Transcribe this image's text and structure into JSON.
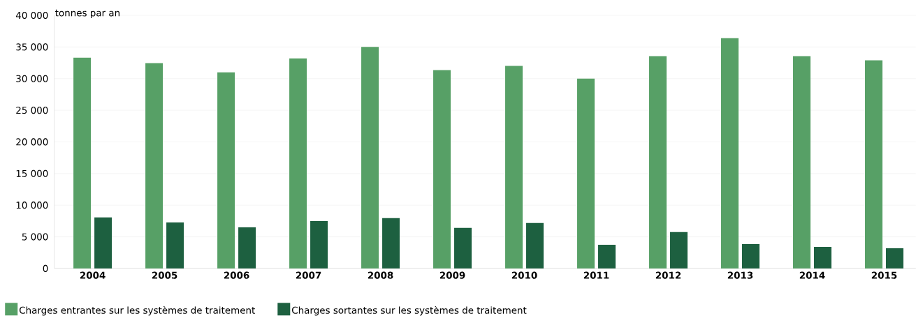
{
  "chart_data": {
    "type": "bar",
    "ylabel": "tonnes par an",
    "categories": [
      "2004",
      "2005",
      "2006",
      "2007",
      "2008",
      "2009",
      "2010",
      "2011",
      "2012",
      "2013",
      "2014",
      "2015"
    ],
    "series": [
      {
        "name": "Charges entrantes sur les systèmes de traitement",
        "color": "#57a066",
        "values": [
          33300,
          32450,
          31000,
          33200,
          35000,
          31350,
          32000,
          30000,
          33550,
          36400,
          33550,
          32900
        ]
      },
      {
        "name": "Charges sortantes sur les systèmes de traitement",
        "color": "#1d6040",
        "values": [
          8060,
          7280,
          6500,
          7500,
          7950,
          6400,
          7170,
          3750,
          5740,
          3860,
          3420,
          3200
        ]
      }
    ],
    "ylim": [
      0,
      40000
    ],
    "yticks": [
      {
        "value": 0,
        "label": "0"
      },
      {
        "value": 5000,
        "label": "5 000"
      },
      {
        "value": 10000,
        "label": "10 000"
      },
      {
        "value": 15000,
        "label": "15 000"
      },
      {
        "value": 20000,
        "label": "20 000"
      },
      {
        "value": 25000,
        "label": "25 000"
      },
      {
        "value": 30000,
        "label": "30 000"
      },
      {
        "value": 35000,
        "label": "35 000"
      },
      {
        "value": 40000,
        "label": "40 000"
      }
    ],
    "grid": "y",
    "legend": "bottom left"
  }
}
